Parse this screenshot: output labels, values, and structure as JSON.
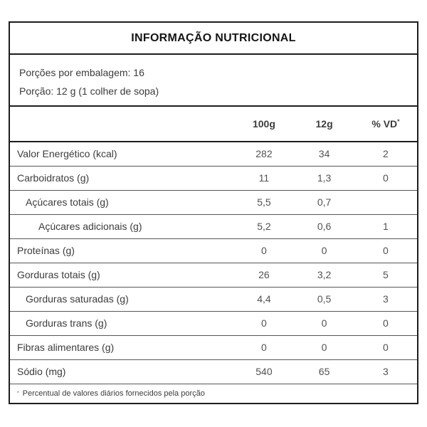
{
  "title": "INFORMAÇÃO NUTRICIONAL",
  "servings": {
    "per_package": "Porções por embalagem: 16",
    "portion": "Porção: 12 g (1 colher de sopa)"
  },
  "columns": {
    "per_100g": "100g",
    "per_portion": "12g",
    "daily_value": "% VD",
    "daily_value_sup": "*"
  },
  "rows": [
    {
      "label": "Valor Energético (kcal)",
      "indent": 0,
      "v100": "282",
      "v12": "34",
      "vd": "2"
    },
    {
      "label": "Carboidratos (g)",
      "indent": 0,
      "v100": "11",
      "v12": "1,3",
      "vd": "0"
    },
    {
      "label": "Açúcares totais (g)",
      "indent": 1,
      "v100": "5,5",
      "v12": "0,7",
      "vd": ""
    },
    {
      "label": "Açúcares adicionais (g)",
      "indent": 2,
      "v100": "5,2",
      "v12": "0,6",
      "vd": "1"
    },
    {
      "label": "Proteínas (g)",
      "indent": 0,
      "v100": "0",
      "v12": "0",
      "vd": "0"
    },
    {
      "label": "Gorduras totais (g)",
      "indent": 0,
      "v100": "26",
      "v12": "3,2",
      "vd": "5"
    },
    {
      "label": "Gorduras saturadas (g)",
      "indent": 1,
      "v100": "4,4",
      "v12": "0,5",
      "vd": "3"
    },
    {
      "label": "Gorduras trans (g)",
      "indent": 1,
      "v100": "0",
      "v12": "0",
      "vd": "0"
    },
    {
      "label": "Fibras alimentares (g)",
      "indent": 0,
      "v100": "0",
      "v12": "0",
      "vd": "0"
    },
    {
      "label": "Sódio (mg)",
      "indent": 0,
      "v100": "540",
      "v12": "65",
      "vd": "3"
    }
  ],
  "footnote": {
    "sup": "*",
    "text": "Percentual de valores diários fornecidos pela porção"
  }
}
